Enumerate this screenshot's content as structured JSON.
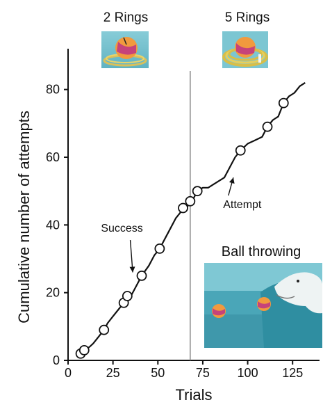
{
  "chart_data": {
    "type": "line",
    "title": "",
    "xlabel": "Trials",
    "ylabel": "Cumulative number of attempts",
    "xlim": [
      0,
      140
    ],
    "ylim": [
      0,
      90
    ],
    "x_ticks": [
      "0",
      "25",
      "50",
      "75",
      "100",
      "125"
    ],
    "y_ticks": [
      "0",
      "20",
      "40",
      "60",
      "80"
    ],
    "grid": false,
    "legend": "none",
    "condition_change_x": 68,
    "condition_labels": [
      "2 Rings",
      "5 Rings"
    ],
    "series": [
      {
        "x": [
          7,
          8,
          9,
          12,
          14,
          17,
          20,
          22,
          25,
          28,
          31,
          33,
          35,
          38,
          41,
          45,
          48,
          51,
          54,
          57,
          60,
          63,
          66,
          68,
          70,
          72,
          75,
          78,
          81,
          84,
          87,
          90,
          93,
          96,
          100,
          104,
          108,
          111,
          114,
          117,
          120,
          123,
          126,
          129,
          132
        ],
        "y": [
          1,
          2,
          3,
          4,
          5,
          7,
          9,
          11,
          13,
          15,
          17,
          18,
          19,
          22,
          25,
          28,
          31,
          33,
          36,
          39,
          42,
          44,
          45,
          47,
          48,
          50,
          51,
          51,
          52,
          53,
          54,
          57,
          60,
          62,
          64,
          65,
          66,
          69,
          71,
          72,
          76,
          78,
          79,
          81,
          82
        ]
      }
    ],
    "success_points": [
      {
        "x": 7,
        "y": 2
      },
      {
        "x": 9,
        "y": 3
      },
      {
        "x": 20,
        "y": 9
      },
      {
        "x": 31,
        "y": 17
      },
      {
        "x": 33,
        "y": 19
      },
      {
        "x": 41,
        "y": 25
      },
      {
        "x": 51,
        "y": 33
      },
      {
        "x": 64,
        "y": 45
      },
      {
        "x": 68,
        "y": 47
      },
      {
        "x": 72,
        "y": 50
      },
      {
        "x": 96,
        "y": 62
      },
      {
        "x": 111,
        "y": 69
      },
      {
        "x": 120,
        "y": 76
      }
    ],
    "annotations": [
      {
        "text": "Success",
        "x": 30,
        "y": 38,
        "arrow_to": {
          "x": 36,
          "y": 26
        }
      },
      {
        "text": "Attempt",
        "x": 97,
        "y": 45,
        "arrow_to": {
          "x": 92,
          "y": 54
        }
      }
    ],
    "inset_label": "Ball throwing"
  },
  "colors": {
    "line": "#111111",
    "marker_fill": "#ffffff",
    "divider": "#888888",
    "pool_water": "#5fb3c4",
    "ball_orange": "#f08a3a",
    "ball_magenta": "#c6437a",
    "ring_yellow": "#e8c84a"
  }
}
